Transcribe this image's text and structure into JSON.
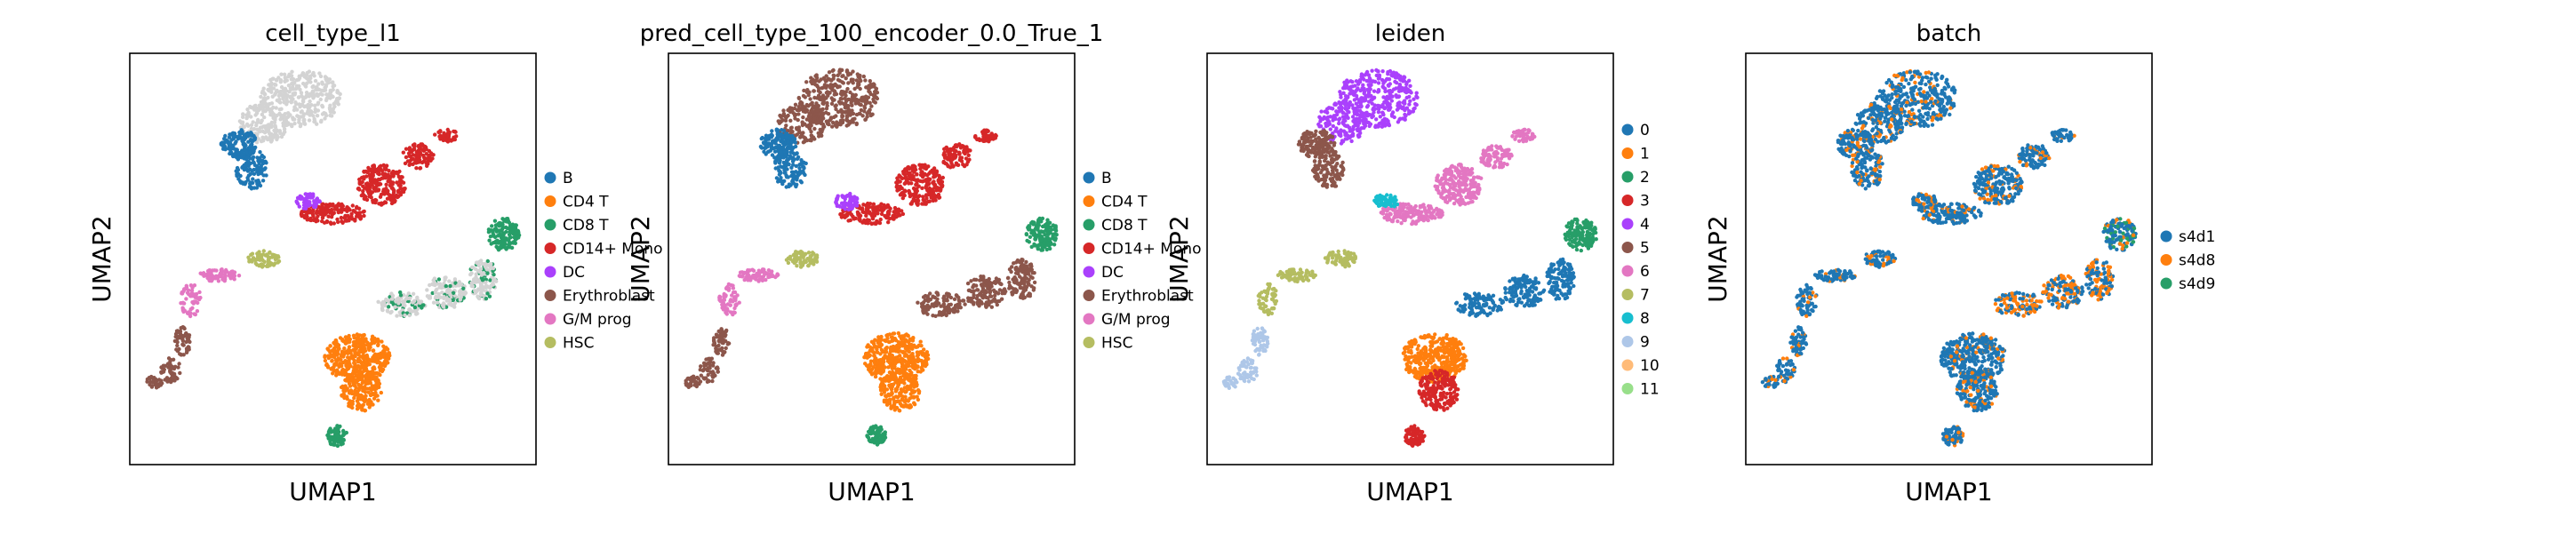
{
  "chart_data": [
    {
      "type": "scatter",
      "title": "cell_type_l1",
      "xlabel": "UMAP1",
      "ylabel": "UMAP2",
      "grid": false,
      "legend_placement": "right",
      "legend": [
        {
          "label": "B",
          "color": "#1f77b4"
        },
        {
          "label": "CD4 T",
          "color": "#ff7f0e"
        },
        {
          "label": "CD8 T",
          "color": "#279e68"
        },
        {
          "label": "CD14+ Mono",
          "color": "#d62728"
        },
        {
          "label": "DC",
          "color": "#aa40fc"
        },
        {
          "label": "Erythroblast",
          "color": "#8c564b"
        },
        {
          "label": "G/M prog",
          "color": "#e377c2"
        },
        {
          "label": "HSC",
          "color": "#b5bd61"
        }
      ]
    },
    {
      "type": "scatter",
      "title": "pred_cell_type_100_encoder_0.0_True_1",
      "xlabel": "UMAP1",
      "ylabel": "UMAP2",
      "grid": false,
      "legend_placement": "right",
      "legend": [
        {
          "label": "B",
          "color": "#1f77b4"
        },
        {
          "label": "CD4 T",
          "color": "#ff7f0e"
        },
        {
          "label": "CD8 T",
          "color": "#279e68"
        },
        {
          "label": "CD14+ Mono",
          "color": "#d62728"
        },
        {
          "label": "DC",
          "color": "#aa40fc"
        },
        {
          "label": "Erythroblast",
          "color": "#8c564b"
        },
        {
          "label": "G/M prog",
          "color": "#e377c2"
        },
        {
          "label": "HSC",
          "color": "#b5bd61"
        }
      ]
    },
    {
      "type": "scatter",
      "title": "leiden",
      "xlabel": "UMAP1",
      "ylabel": "UMAP2",
      "grid": false,
      "legend_placement": "right",
      "legend": [
        {
          "label": "0",
          "color": "#1f77b4"
        },
        {
          "label": "1",
          "color": "#ff7f0e"
        },
        {
          "label": "2",
          "color": "#279e68"
        },
        {
          "label": "3",
          "color": "#d62728"
        },
        {
          "label": "4",
          "color": "#aa40fc"
        },
        {
          "label": "5",
          "color": "#8c564b"
        },
        {
          "label": "6",
          "color": "#e377c2"
        },
        {
          "label": "7",
          "color": "#b5bd61"
        },
        {
          "label": "8",
          "color": "#17becf"
        },
        {
          "label": "9",
          "color": "#aec7e8"
        },
        {
          "label": "10",
          "color": "#ffbb78"
        },
        {
          "label": "11",
          "color": "#98df8a"
        }
      ]
    },
    {
      "type": "scatter",
      "title": "batch",
      "xlabel": "UMAP1",
      "ylabel": "UMAP2",
      "grid": false,
      "legend_placement": "right",
      "legend": [
        {
          "label": "s4d1",
          "color": "#1f77b4"
        },
        {
          "label": "s4d8",
          "color": "#ff7f0e"
        },
        {
          "label": "s4d9",
          "color": "#279e68"
        }
      ]
    }
  ]
}
